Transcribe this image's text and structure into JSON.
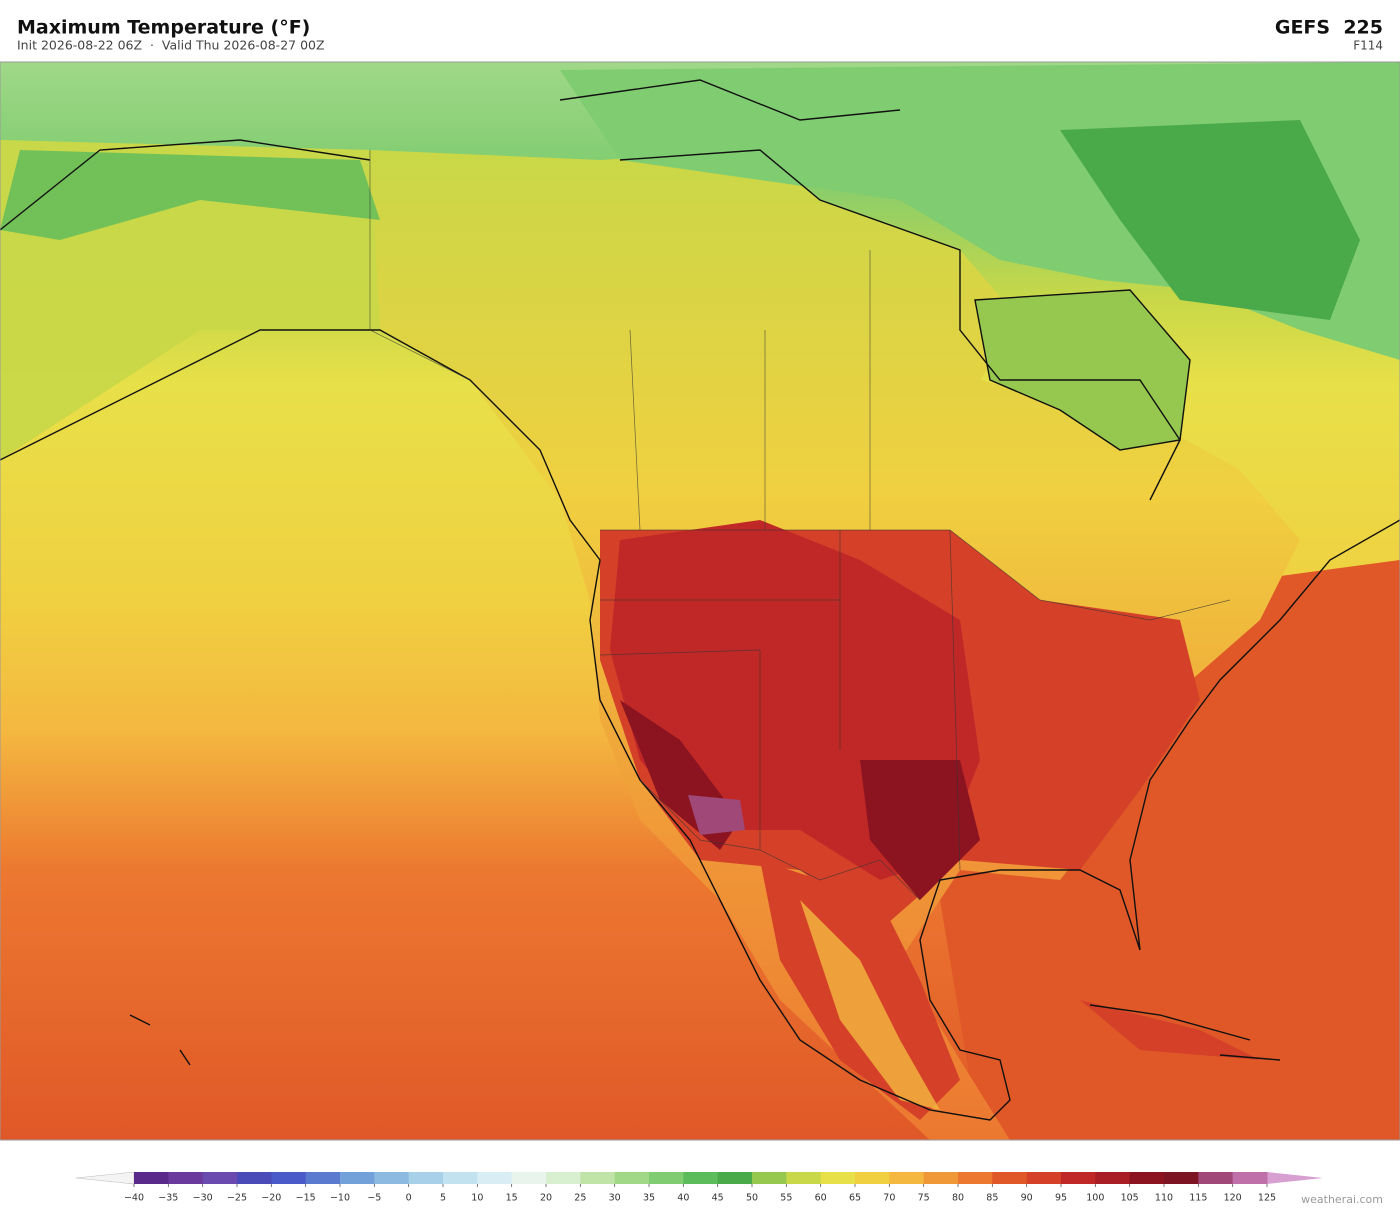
{
  "header": {
    "title": "Maximum Temperature  (°F)",
    "subtitle": "Init 2026-08-22 06Z  ·  Valid Thu 2026-08-27 00Z",
    "model": "GEFS  225",
    "forecast_hour": "F114"
  },
  "colorbar": {
    "ticks": [
      {
        "value": -40,
        "label": "−40"
      },
      {
        "value": -35,
        "label": "−35"
      },
      {
        "value": -30,
        "label": "−30"
      },
      {
        "value": -25,
        "label": "−25"
      },
      {
        "value": -20,
        "label": "−20"
      },
      {
        "value": -15,
        "label": "−15"
      },
      {
        "value": -10,
        "label": "−10"
      },
      {
        "value": -5,
        "label": "−5"
      },
      0,
      5,
      10,
      15,
      20,
      25,
      30,
      35,
      40,
      45,
      50,
      55,
      60,
      65,
      70,
      75,
      80,
      85,
      90,
      95,
      100,
      105,
      110,
      115,
      120,
      125
    ],
    "colors": [
      "#5a2a8a",
      "#6a3a9c",
      "#6a4aae",
      "#4a4ab8",
      "#4a5ac8",
      "#5a7ad0",
      "#72a0d8",
      "#8cbae0",
      "#a8d0e8",
      "#c2e2f0",
      "#d8eef4",
      "#e8f4ec",
      "#d8f0d0",
      "#c0e4a8",
      "#a0d888",
      "#80cc70",
      "#5cbc5c",
      "#4aaa4a",
      "#96c850",
      "#c8d848",
      "#e8e048",
      "#f0d040",
      "#f4b840",
      "#f09838",
      "#ec7830",
      "#e05828",
      "#d44028",
      "#c02828",
      "#a81e24",
      "#8c1420",
      "#7c1424",
      "#a04878",
      "#c070a8"
    ],
    "under_color": "#f4f4f4",
    "over_color": "#d8a0d0"
  },
  "footer": {
    "credit": "weatherai.com"
  }
}
